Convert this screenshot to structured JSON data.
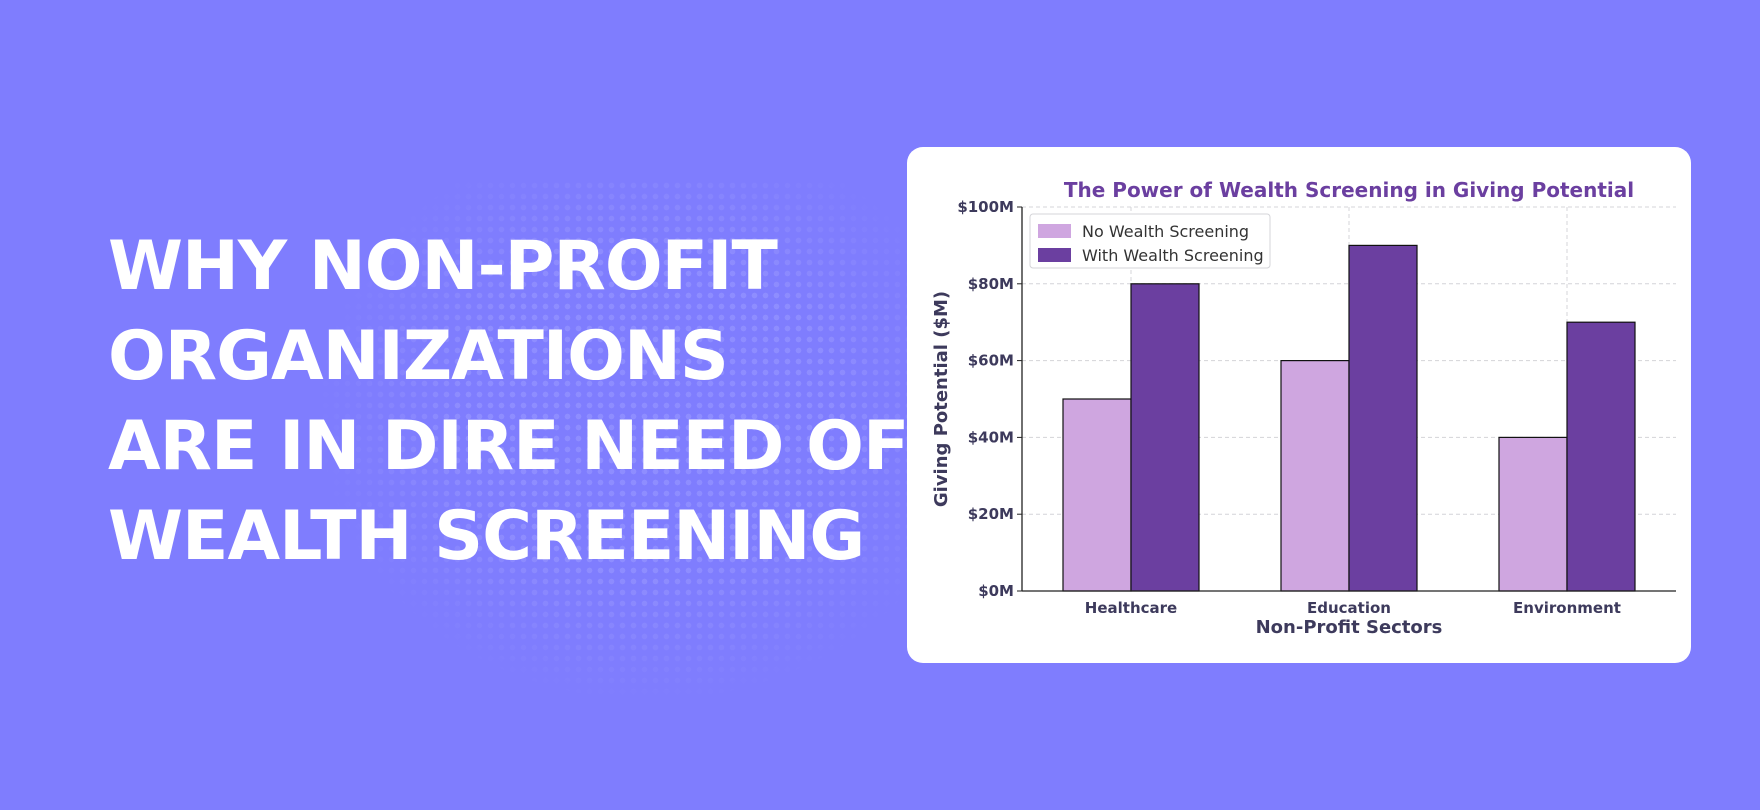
{
  "headline": {
    "lines": [
      "WHY NON-PROFIT",
      "ORGANIZATIONS",
      "ARE IN DIRE NEED OF",
      "WEALTH SCREENING"
    ]
  },
  "colors": {
    "background": "#7f7dfe",
    "no_screening": "#cfa6e0",
    "with_screening": "#6b3fa0",
    "title": "#6b3fa0",
    "axis_text": "#3d3a5c"
  },
  "chart_data": {
    "type": "bar",
    "title": "The Power of Wealth Screening in Giving Potential",
    "xlabel": "Non-Profit Sectors",
    "ylabel": "Giving Potential ($M)",
    "categories": [
      "Healthcare",
      "Education",
      "Environment"
    ],
    "series": [
      {
        "name": "No Wealth Screening",
        "values": [
          50,
          60,
          40
        ]
      },
      {
        "name": "With Wealth Screening",
        "values": [
          80,
          90,
          70
        ]
      }
    ],
    "ylim": [
      0,
      100
    ],
    "yticks": [
      0,
      20,
      40,
      60,
      80,
      100
    ],
    "ytick_labels": [
      "$0M",
      "$20M",
      "$40M",
      "$60M",
      "$80M",
      "$100M"
    ],
    "grid": true,
    "legend": "top-left"
  }
}
